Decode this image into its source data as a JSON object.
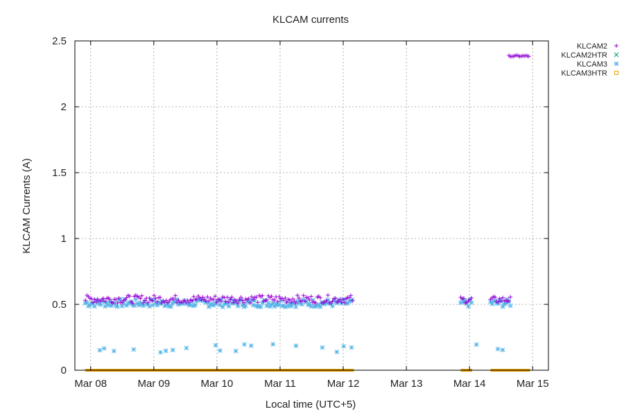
{
  "chart_data": {
    "type": "scatter",
    "title": "KLCAM currents",
    "xlabel": "Local time (UTC+5)",
    "ylabel": "KLCAM Currents (A)",
    "x_ticks": [
      "Mar 08",
      "Mar 09",
      "Mar 10",
      "Mar 11",
      "Mar 12",
      "Mar 13",
      "Mar 14",
      "Mar 15"
    ],
    "y_ticks": [
      "0",
      "0.5",
      "1",
      "1.5",
      "2",
      "2.5"
    ],
    "xlim": [
      "Mar 07 18:00",
      "Mar 15 06:00"
    ],
    "ylim": [
      0,
      2.5
    ],
    "grid": true,
    "legend_position": "top-right, outside",
    "series": [
      {
        "name": "KLCAM2",
        "marker": "plus",
        "color": "#9400d3",
        "segments": [
          {
            "from": "Mar 07 22:00",
            "to": "Mar 12 04:00",
            "y_min": 0.51,
            "y_max": 0.57
          },
          {
            "from": "Mar 13 20:40",
            "to": "Mar 14 01:00",
            "y_min": 0.51,
            "y_max": 0.56
          },
          {
            "from": "Mar 14 08:00",
            "to": "Mar 14 16:00",
            "y_min": 0.51,
            "y_max": 0.56
          },
          {
            "from": "Mar 14 15:00",
            "to": "Mar 14 23:00",
            "y_min": 2.38,
            "y_max": 2.39
          }
        ]
      },
      {
        "name": "KLCAM2HTR",
        "marker": "cross",
        "color": "#009e73",
        "segments": [
          {
            "from": "Mar 07 22:00",
            "to": "Mar 12 04:00",
            "y_min": 0.0,
            "y_max": 0.0
          },
          {
            "from": "Mar 13 20:40",
            "to": "Mar 14 01:00",
            "y_min": 0.0,
            "y_max": 0.0
          },
          {
            "from": "Mar 14 08:00",
            "to": "Mar 14 23:00",
            "y_min": 0.0,
            "y_max": 0.0
          }
        ]
      },
      {
        "name": "KLCAM3",
        "marker": "star",
        "color": "#56b4e9",
        "segments": [
          {
            "from": "Mar 07 22:00",
            "to": "Mar 12 04:00",
            "y_min": 0.48,
            "y_max": 0.54
          },
          {
            "from": "Mar 13 20:40",
            "to": "Mar 14 01:00",
            "y_min": 0.48,
            "y_max": 0.54
          },
          {
            "from": "Mar 14 08:00",
            "to": "Mar 14 16:00",
            "y_min": 0.48,
            "y_max": 0.54
          },
          {
            "from": "Mar 07 22:00",
            "to": "Mar 12 04:00",
            "y_min": 0.13,
            "y_max": 0.2,
            "sparse": true
          },
          {
            "from": "Mar 13 20:40",
            "to": "Mar 14 01:00",
            "y_min": 0.13,
            "y_max": 0.2,
            "sparse": true
          },
          {
            "from": "Mar 14 08:00",
            "to": "Mar 14 16:00",
            "y_min": 0.13,
            "y_max": 0.2,
            "sparse": true
          }
        ]
      },
      {
        "name": "KLCAM3HTR",
        "marker": "square",
        "color": "#e69f00",
        "segments": [
          {
            "from": "Mar 07 22:00",
            "to": "Mar 12 04:00",
            "y_min": 0.0,
            "y_max": 0.0
          },
          {
            "from": "Mar 13 20:40",
            "to": "Mar 14 01:00",
            "y_min": 0.0,
            "y_max": 0.0
          },
          {
            "from": "Mar 14 08:00",
            "to": "Mar 14 23:00",
            "y_min": 0.0,
            "y_max": 0.0
          }
        ]
      }
    ]
  }
}
